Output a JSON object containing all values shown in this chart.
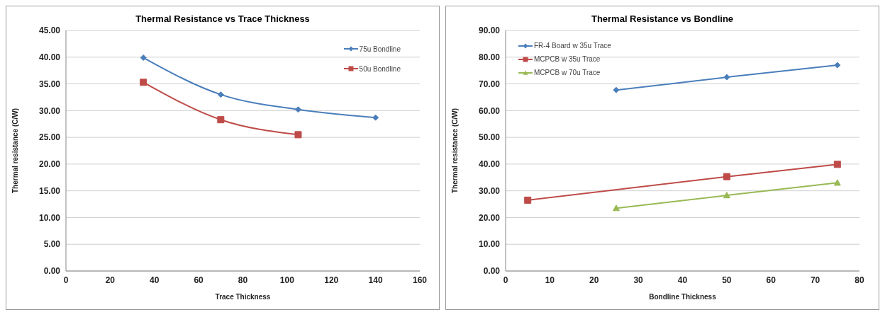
{
  "chart_data": [
    {
      "type": "line",
      "title": "Thermal Resistance vs Trace Thickness",
      "xlabel": "Trace Thickness",
      "ylabel": "Thermal resistance (C/W)",
      "xlim": [
        0,
        160
      ],
      "xticks": [
        0,
        20,
        40,
        60,
        80,
        100,
        120,
        140,
        160
      ],
      "ylim": [
        0,
        45
      ],
      "yticks": [
        {
          "value": 0,
          "label": "0.00"
        },
        {
          "value": 5,
          "label": "5.00"
        },
        {
          "value": 10,
          "label": "10.00"
        },
        {
          "value": 15,
          "label": "15.00"
        },
        {
          "value": 20,
          "label": "20.00"
        },
        {
          "value": 25,
          "label": "25.00"
        },
        {
          "value": 30,
          "label": "30.00"
        },
        {
          "value": 35,
          "label": "35.00"
        },
        {
          "value": 40,
          "label": "40.00"
        },
        {
          "value": 45,
          "label": "45.00"
        }
      ],
      "grid": "y",
      "legend": "top right",
      "line_style": "solid",
      "series": [
        {
          "name": "75u Bondline",
          "color": "#4a7ebb",
          "marker": "diamond",
          "x": [
            35,
            70,
            105,
            140
          ],
          "values": [
            39.9,
            33.0,
            30.2,
            28.7
          ]
        },
        {
          "name": "50u Bondline",
          "color": "#be4b48",
          "marker": "square",
          "x": [
            35,
            70,
            105
          ],
          "values": [
            35.3,
            28.3,
            25.5
          ]
        }
      ]
    },
    {
      "type": "line",
      "title": "Thermal Resistance vs Bondline",
      "xlabel": "Bondline Thickness",
      "ylabel": "Thermal resistance (C/W)",
      "xlim": [
        0,
        80
      ],
      "xticks": [
        0,
        10,
        20,
        30,
        40,
        50,
        60,
        70,
        80
      ],
      "ylim": [
        0,
        90
      ],
      "yticks": [
        {
          "value": 0,
          "label": "0.00"
        },
        {
          "value": 10,
          "label": "10.00"
        },
        {
          "value": 20,
          "label": "20.00"
        },
        {
          "value": 30,
          "label": "30.00"
        },
        {
          "value": 40,
          "label": "40.00"
        },
        {
          "value": 50,
          "label": "50.00"
        },
        {
          "value": 60,
          "label": "60.00"
        },
        {
          "value": 70,
          "label": "70.00"
        },
        {
          "value": 80,
          "label": "80.00"
        },
        {
          "value": 90,
          "label": "90.00"
        }
      ],
      "grid": "y",
      "legend": "top left",
      "line_style": "solid",
      "series": [
        {
          "name": "FR-4 Board w 35u Trace",
          "color": "#4a7ebb",
          "marker": "diamond",
          "x": [
            25,
            50,
            75
          ],
          "values": [
            67.7,
            72.5,
            77.0
          ]
        },
        {
          "name": "MCPCB w 35u Trace",
          "color": "#be4b48",
          "marker": "square",
          "x": [
            5,
            50,
            75
          ],
          "values": [
            26.5,
            35.3,
            39.9
          ]
        },
        {
          "name": "MCPCB w 70u Trace",
          "color": "#98b954",
          "marker": "triangle",
          "x": [
            25,
            50,
            75
          ],
          "values": [
            23.5,
            28.3,
            33.0
          ]
        }
      ]
    }
  ]
}
